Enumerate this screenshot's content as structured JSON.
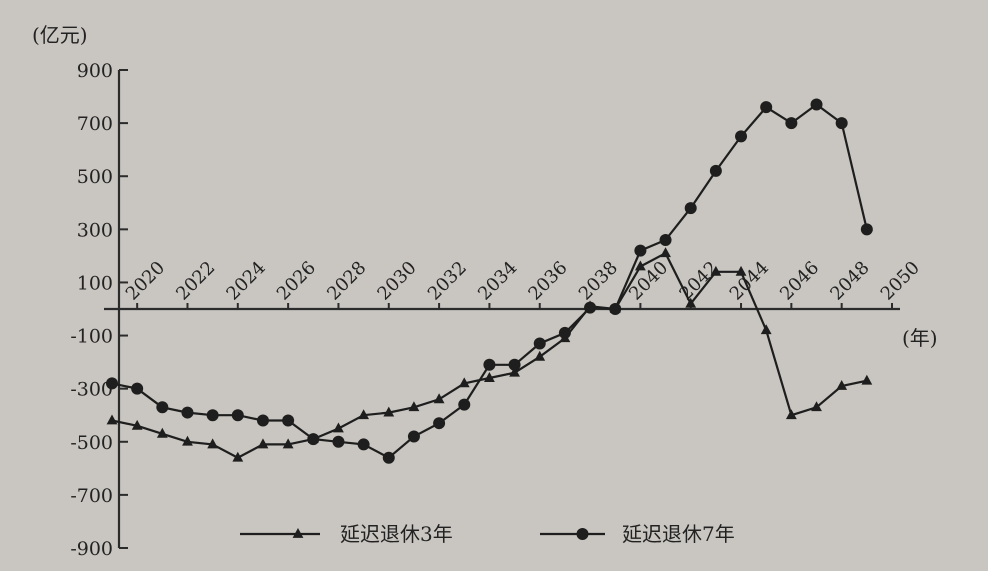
{
  "chart_data": {
    "type": "line",
    "y_unit_label": "(亿元)",
    "x_unit_label": "(年)",
    "ylim": [
      -900,
      900
    ],
    "yticks": [
      900,
      700,
      500,
      300,
      100,
      -100,
      -300,
      -500,
      -700,
      -900
    ],
    "x_tick_labels": [
      "2020",
      "2022",
      "2024",
      "2026",
      "2028",
      "2030",
      "2032",
      "2034",
      "2036",
      "2038",
      "2040",
      "2042",
      "2044",
      "2046",
      "2048",
      "2050"
    ],
    "grid": false,
    "legend_position": "bottom-center",
    "series": [
      {
        "name": "延迟退休3年",
        "marker": "triangle",
        "x": [
          2019,
          2020,
          2021,
          2022,
          2023,
          2024,
          2025,
          2026,
          2027,
          2028,
          2029,
          2030,
          2031,
          2032,
          2033,
          2034,
          2035,
          2036,
          2037,
          2038,
          2039,
          2040,
          2041,
          2042,
          2043,
          2044,
          2045,
          2046,
          2047,
          2048,
          2049
        ],
        "values": [
          -420,
          -440,
          -470,
          -500,
          -510,
          -560,
          -510,
          -510,
          -490,
          -450,
          -400,
          -390,
          -370,
          -340,
          -280,
          -260,
          -240,
          -180,
          -110,
          10,
          0,
          160,
          210,
          20,
          140,
          140,
          -80,
          -400,
          -370,
          -290,
          -270
        ]
      },
      {
        "name": "延迟退休7年",
        "marker": "circle",
        "x": [
          2019,
          2020,
          2021,
          2022,
          2023,
          2024,
          2025,
          2026,
          2027,
          2028,
          2029,
          2030,
          2031,
          2032,
          2033,
          2034,
          2035,
          2036,
          2037,
          2038,
          2039,
          2040,
          2041,
          2042,
          2043,
          2044,
          2045,
          2046,
          2047,
          2048,
          2049
        ],
        "values": [
          -280,
          -300,
          -370,
          -390,
          -400,
          -400,
          -420,
          -420,
          -490,
          -500,
          -510,
          -560,
          -480,
          -430,
          -360,
          -210,
          -210,
          -130,
          -90,
          5,
          0,
          220,
          260,
          380,
          520,
          650,
          760,
          700,
          770,
          700,
          300
        ]
      }
    ]
  }
}
